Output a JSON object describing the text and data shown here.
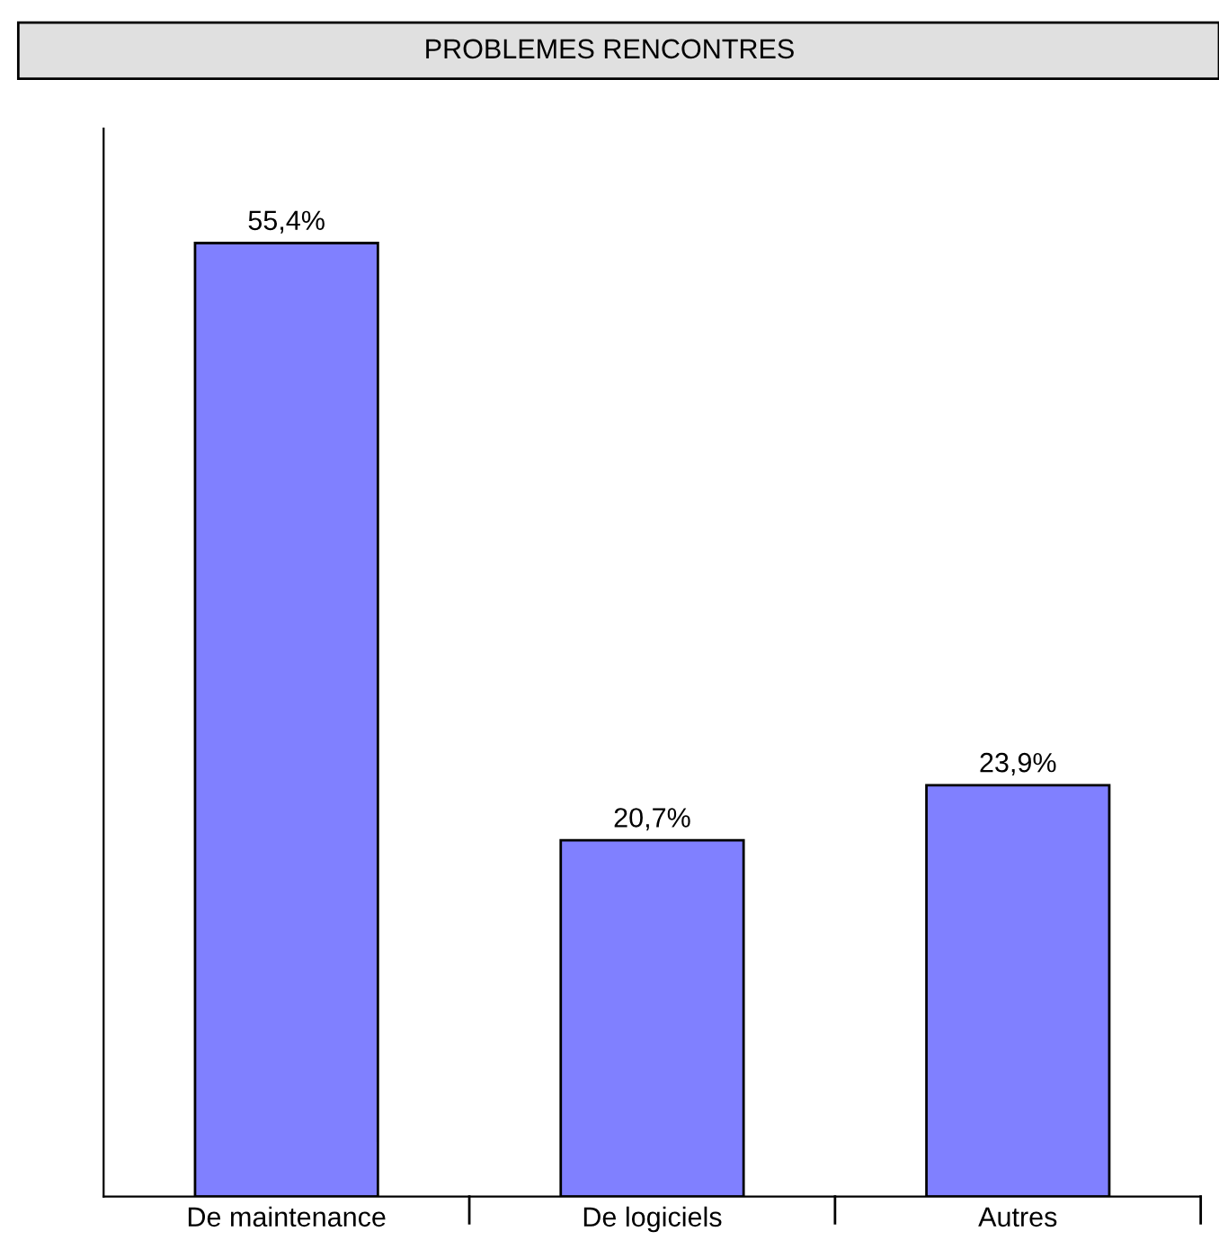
{
  "chart_data": {
    "type": "bar",
    "title": "PROBLEMES RENCONTRES",
    "categories": [
      "De maintenance",
      "De logiciels",
      "Autres"
    ],
    "values": [
      55.4,
      20.7,
      23.9
    ],
    "value_labels": [
      "55,4%",
      "20,7%",
      "23,9%"
    ],
    "color": "#8080ff",
    "grid": false,
    "legend": false
  }
}
